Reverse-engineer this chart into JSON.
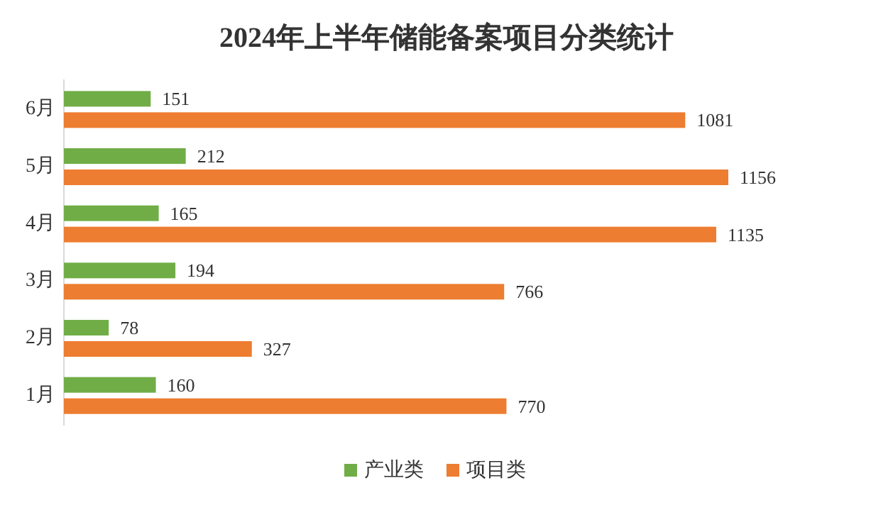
{
  "chart_data": {
    "type": "bar",
    "orientation": "horizontal",
    "title": "2024年上半年储能备案项目分类统计",
    "categories": [
      "6月",
      "5月",
      "4月",
      "3月",
      "2月",
      "1月"
    ],
    "series": [
      {
        "name": "产业类",
        "color": "#70ad47",
        "values": [
          151,
          212,
          165,
          194,
          78,
          160
        ]
      },
      {
        "name": "项目类",
        "color": "#ed7d31",
        "values": [
          1081,
          1156,
          1135,
          766,
          327,
          770
        ]
      }
    ],
    "data_labels": true,
    "legend": "bottom",
    "grid": false
  }
}
